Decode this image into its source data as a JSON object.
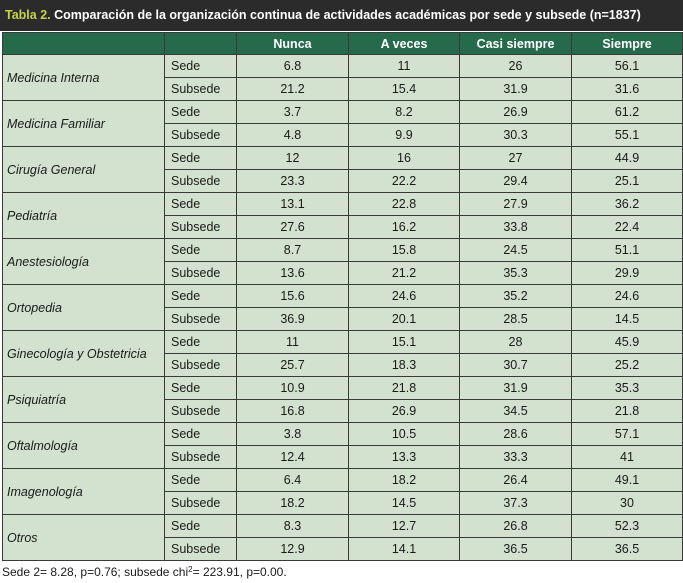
{
  "title": {
    "label": "Tabla 2.",
    "text": "Comparación de la organización continua de actividades académicas por sede y subsede (n=1837)"
  },
  "header": {
    "columns": [
      "Nunca",
      "A veces",
      "Casi siempre",
      "Siempre"
    ]
  },
  "rows": [
    {
      "category": "Medicina Interna",
      "values": [
        [
          "Sede",
          "6.8",
          "11",
          "26",
          "56.1"
        ],
        [
          "Subsede",
          "21.2",
          "15.4",
          "31.9",
          "31.6"
        ]
      ]
    },
    {
      "category": "Medicina Familiar",
      "values": [
        [
          "Sede",
          "3.7",
          "8.2",
          "26.9",
          "61.2"
        ],
        [
          "Subsede",
          "4.8",
          "9.9",
          "30.3",
          "55.1"
        ]
      ]
    },
    {
      "category": "Cirugía General",
      "values": [
        [
          "Sede",
          "12",
          "16",
          "27",
          "44.9"
        ],
        [
          "Subsede",
          "23.3",
          "22.2",
          "29.4",
          "25.1"
        ]
      ]
    },
    {
      "category": "Pediatría",
      "values": [
        [
          "Sede",
          "13.1",
          "22.8",
          "27.9",
          "36.2"
        ],
        [
          "Subsede",
          "27.6",
          "16.2",
          "33.8",
          "22.4"
        ]
      ]
    },
    {
      "category": "Anestesiología",
      "values": [
        [
          "Sede",
          "8.7",
          "15.8",
          "24.5",
          "51.1"
        ],
        [
          "Subsede",
          "13.6",
          "21.2",
          "35.3",
          "29.9"
        ]
      ]
    },
    {
      "category": "Ortopedia",
      "values": [
        [
          "Sede",
          "15.6",
          "24.6",
          "35.2",
          "24.6"
        ],
        [
          "Subsede",
          "36.9",
          "20.1",
          "28.5",
          "14.5"
        ]
      ]
    },
    {
      "category": "Ginecología y Obstetricia",
      "values": [
        [
          "Sede",
          "11",
          "15.1",
          "28",
          "45.9"
        ],
        [
          "Subsede",
          "25.7",
          "18.3",
          "30.7",
          "25.2"
        ]
      ]
    },
    {
      "category": "Psiquiatría",
      "values": [
        [
          "Sede",
          "10.9",
          "21.8",
          "31.9",
          "35.3"
        ],
        [
          "Subsede",
          "16.8",
          "26.9",
          "34.5",
          "21.8"
        ]
      ]
    },
    {
      "category": "Oftalmología",
      "values": [
        [
          "Sede",
          "3.8",
          "10.5",
          "28.6",
          "57.1"
        ],
        [
          "Subsede",
          "12.4",
          "13.3",
          "33.3",
          "41"
        ]
      ]
    },
    {
      "category": "Imagenología",
      "values": [
        [
          "Sede",
          "6.4",
          "18.2",
          "26.4",
          "49.1"
        ],
        [
          "Subsede",
          "18.2",
          "14.5",
          "37.3",
          "30"
        ]
      ]
    },
    {
      "category": "Otros",
      "values": [
        [
          "Sede",
          "8.3",
          "12.7",
          "26.8",
          "52.3"
        ],
        [
          "Subsede",
          "12.9",
          "14.1",
          "36.5",
          "36.5"
        ]
      ]
    }
  ],
  "footnote": {
    "part1": "Sede 2= 8.28, p=0.76; subsede chi",
    "sup": "2",
    "part2": "= 223.91, p=0.00."
  },
  "colors": {
    "title_bg": "#2b2b2b",
    "title_label": "#c6d24a",
    "header_bg": "#256a4b",
    "cell_bg": "#d2e2cf"
  }
}
